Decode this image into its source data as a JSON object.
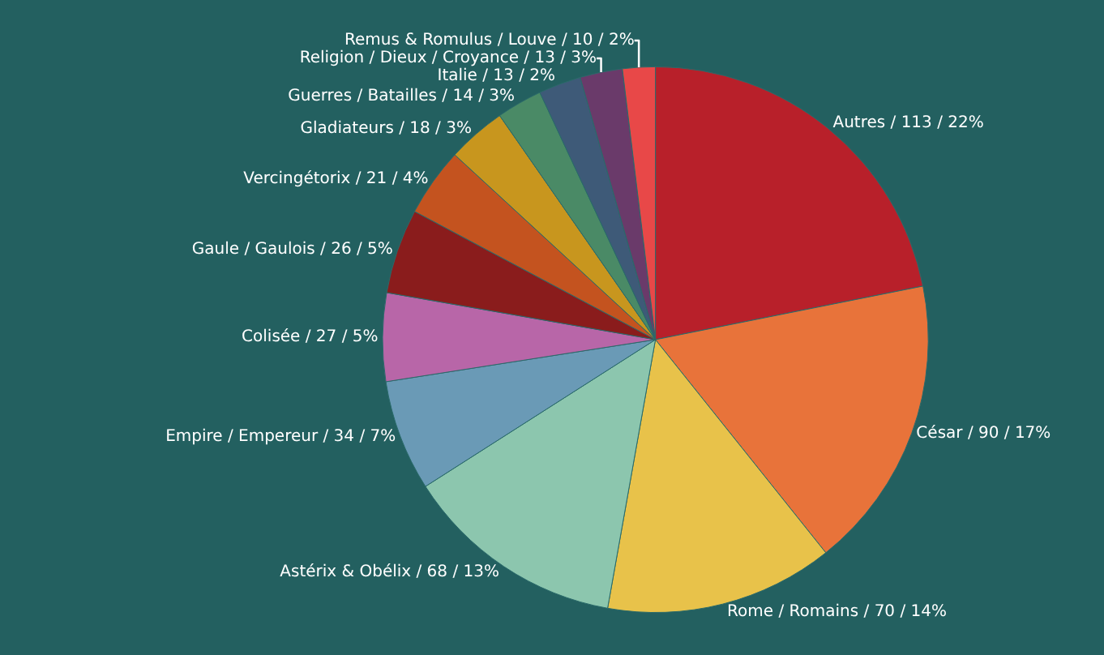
{
  "chart_data": {
    "type": "pie",
    "categories": [
      "Autres",
      "César",
      "Rome / Romains",
      "Astérix & Obélix",
      "Empire / Empereur",
      "Colisée",
      "Gaule / Gaulois",
      "Vercingétorix",
      "Gladiateurs",
      "Guerres / Batailles",
      "Italie",
      "Religion / Dieux / Croyance",
      "Remus & Romulus / Louve"
    ],
    "values": [
      113,
      90,
      70,
      68,
      34,
      27,
      26,
      21,
      18,
      14,
      13,
      13,
      10
    ],
    "value_labels": [
      "/ 113 / 22%",
      "/ 90 / 17%",
      "/ 70 / 14%",
      "/ 68 / 13%",
      "/ 34 / 7%",
      "/ 27 / 5%",
      "/ 26 / 5%",
      "/ 21 / 4%",
      "/ 18 / 3%",
      "/ 14 / 3%",
      "/ 13 / 2%",
      "/ 13 / 3%",
      "/ 10 / 2%"
    ],
    "colors": [
      "#b8202a",
      "#e8733a",
      "#e8c24a",
      "#8cc6ae",
      "#6a9ab6",
      "#b866a8",
      "#8a1c1c",
      "#c4531f",
      "#c8961e",
      "#4a8a66",
      "#3e5a78",
      "#6a3a6a",
      "#e84848"
    ],
    "legend": false
  }
}
